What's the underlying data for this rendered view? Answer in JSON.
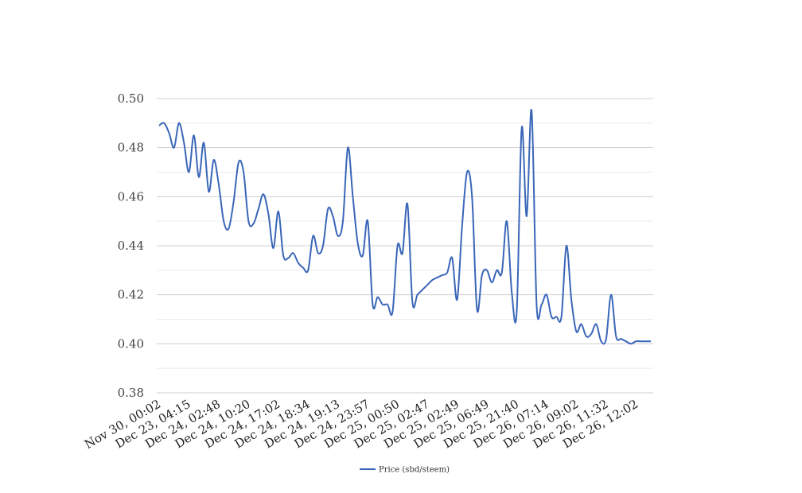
{
  "chart_data": {
    "type": "line",
    "title": "",
    "xlabel": "",
    "ylabel": "",
    "ylim": [
      0.38,
      0.5
    ],
    "yticks": [
      "0.38",
      "0.40",
      "0.42",
      "0.44",
      "0.46",
      "0.48",
      "0.50"
    ],
    "grid": true,
    "legend_position": "bottom",
    "x_tick_labels": [
      "Nov 30, 00:02",
      "Dec 23, 04:15",
      "Dec 24, 02:48",
      "Dec 24, 10:20",
      "Dec 24, 17:02",
      "Dec 24, 18:34",
      "Dec 24, 19:13",
      "Dec 24, 23:57",
      "Dec 25, 00:50",
      "Dec 25, 02:47",
      "Dec 25, 02:49",
      "Dec 25, 06:49",
      "Dec 25, 21:40",
      "Dec 26, 07:14",
      "Dec 26, 09:02",
      "Dec 26, 11:32",
      "Dec 26, 12:02"
    ],
    "series": [
      {
        "name": "Price (sbd/steem)",
        "color": "#3a66b8",
        "values": [
          0.489,
          0.49,
          0.486,
          0.48,
          0.49,
          0.482,
          0.47,
          0.485,
          0.468,
          0.482,
          0.462,
          0.475,
          0.465,
          0.45,
          0.447,
          0.458,
          0.474,
          0.47,
          0.45,
          0.449,
          0.455,
          0.461,
          0.453,
          0.439,
          0.454,
          0.436,
          0.435,
          0.437,
          0.433,
          0.431,
          0.43,
          0.444,
          0.437,
          0.44,
          0.455,
          0.452,
          0.444,
          0.45,
          0.48,
          0.46,
          0.441,
          0.436,
          0.45,
          0.416,
          0.419,
          0.416,
          0.416,
          0.413,
          0.44,
          0.437,
          0.457,
          0.417,
          0.42,
          0.422,
          0.424,
          0.426,
          0.427,
          0.428,
          0.429,
          0.435,
          0.418,
          0.448,
          0.47,
          0.46,
          0.414,
          0.428,
          0.43,
          0.425,
          0.43,
          0.429,
          0.45,
          0.421,
          0.413,
          0.488,
          0.452,
          0.495,
          0.416,
          0.416,
          0.42,
          0.411,
          0.411,
          0.411,
          0.44,
          0.418,
          0.405,
          0.408,
          0.403,
          0.404,
          0.408,
          0.401,
          0.402,
          0.42,
          0.403,
          0.402,
          0.401,
          0.4,
          0.401,
          0.401,
          0.401,
          0.401
        ]
      }
    ]
  }
}
